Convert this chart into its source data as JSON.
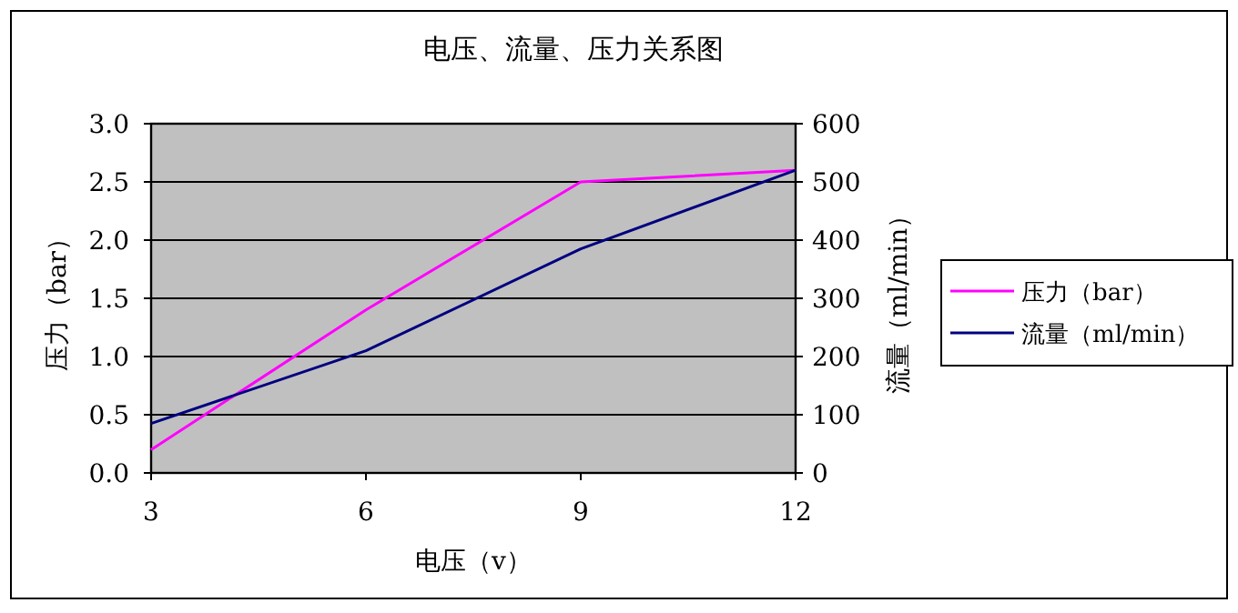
{
  "chart_data": {
    "type": "line",
    "title": "电压、流量、压力关系图",
    "xlabel": "电压（v）",
    "ylabel": "压力（bar）",
    "y2label": "流量（ml/min）",
    "x": [
      3,
      6,
      9,
      12
    ],
    "series": [
      {
        "name": "压力（bar）",
        "color": "#ff00ff",
        "values": [
          0.2,
          1.4,
          2.5,
          2.6
        ]
      },
      {
        "name": "流量（ml/min）",
        "color": "#000080",
        "values": [
          85,
          210,
          385,
          520
        ],
        "axis": "y2"
      }
    ],
    "xlim": [
      3,
      12
    ],
    "xticks": [
      3,
      6,
      9,
      12
    ],
    "ylim": [
      0,
      3
    ],
    "yticks": [
      {
        "value": 0,
        "label": "0.0"
      },
      {
        "value": 0.5,
        "label": "0.5"
      },
      {
        "value": 1,
        "label": "1.0"
      },
      {
        "value": 1.5,
        "label": "1.5"
      },
      {
        "value": 2,
        "label": "2.0"
      },
      {
        "value": 2.5,
        "label": "2.5"
      },
      {
        "value": 3,
        "label": "3.0"
      }
    ],
    "y2lim": [
      0,
      600
    ],
    "y2ticks": [
      0,
      100,
      200,
      300,
      400,
      500,
      600
    ],
    "grid": "y",
    "legend": "right"
  }
}
